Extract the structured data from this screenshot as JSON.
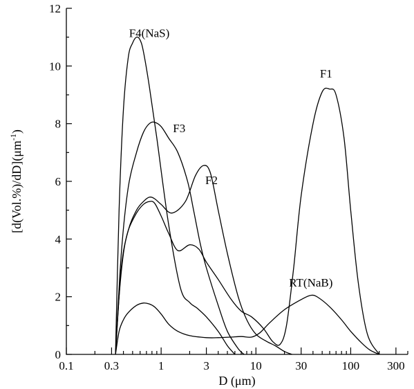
{
  "chart_data": {
    "type": "line",
    "title": "",
    "xlabel": "D (μm)",
    "ylabel": "[d(Vol.%)/dD](μm",
    "ylabel_sup": "-1",
    "ylabel_close": ")",
    "xscale": "log",
    "xlim": [
      0.1,
      400
    ],
    "ylim": [
      0,
      12
    ],
    "xticks": [
      0.1,
      0.3,
      1,
      3,
      10,
      30,
      100,
      300
    ],
    "xtick_labels": [
      "0.1",
      "0.3",
      "1",
      "3",
      "10",
      "30",
      "100",
      "300"
    ],
    "yticks": [
      0,
      2,
      4,
      6,
      8,
      10,
      12
    ],
    "ytick_labels": [
      "0",
      "2",
      "4",
      "6",
      "8",
      "10",
      "12"
    ],
    "grid": false,
    "series": [
      {
        "name": "F4(NaS)",
        "label_at": [
          0.75,
          11.0
        ],
        "x": [
          0.33,
          0.36,
          0.4,
          0.45,
          0.5,
          0.55,
          0.6,
          0.65,
          0.75,
          0.9,
          1.2,
          1.6,
          2.0,
          2.4,
          3.0,
          4.0,
          5.0,
          6.0
        ],
        "y": [
          0.0,
          5.0,
          8.5,
          10.3,
          10.8,
          11.0,
          10.9,
          10.5,
          9.3,
          7.5,
          4.5,
          2.3,
          1.8,
          1.6,
          1.3,
          0.8,
          0.3,
          0.0
        ]
      },
      {
        "name": "F3",
        "label_at": [
          1.55,
          7.7
        ],
        "x": [
          0.33,
          0.38,
          0.45,
          0.55,
          0.65,
          0.75,
          0.85,
          1.0,
          1.2,
          1.5,
          1.9,
          2.2,
          2.6,
          3.0,
          4.0,
          5.0,
          6.5,
          7.5
        ],
        "y": [
          0.0,
          3.5,
          5.8,
          7.0,
          7.7,
          8.0,
          8.05,
          7.9,
          7.5,
          7.0,
          6.0,
          5.0,
          3.8,
          3.0,
          1.7,
          0.8,
          0.2,
          0.0
        ]
      },
      {
        "name": "F2",
        "label_at": [
          3.4,
          5.9
        ],
        "x": [
          0.33,
          0.38,
          0.45,
          0.55,
          0.65,
          0.75,
          0.85,
          1.0,
          1.3,
          1.8,
          2.3,
          2.8,
          3.3,
          4.0,
          5.0,
          6.5,
          8.0,
          10.0,
          13.0,
          16.0,
          20.0,
          24.0
        ],
        "y": [
          0.0,
          3.0,
          4.3,
          5.0,
          5.3,
          5.45,
          5.4,
          5.2,
          4.9,
          5.3,
          6.2,
          6.55,
          6.3,
          5.0,
          3.5,
          2.0,
          1.2,
          0.7,
          0.45,
          0.3,
          0.1,
          0.0
        ]
      },
      {
        "name": "F1",
        "label_at": [
          55,
          9.6
        ],
        "x": [
          0.33,
          0.36,
          0.4,
          0.45,
          0.55,
          0.65,
          0.75,
          0.85,
          1.0,
          1.2,
          1.5,
          2.0,
          2.5,
          3.0,
          4.0,
          5.5,
          7.0,
          9.0,
          12.0,
          15.0,
          18.0,
          21.0,
          25.0,
          30.0,
          40.0,
          50.0,
          60.0,
          70.0,
          85.0,
          100.0,
          120.0,
          150.0,
          200.0
        ],
        "y": [
          0.0,
          2.0,
          3.5,
          4.3,
          4.9,
          5.2,
          5.3,
          5.25,
          4.8,
          4.2,
          3.6,
          3.8,
          3.65,
          3.2,
          2.6,
          1.9,
          1.5,
          1.3,
          0.9,
          0.45,
          0.35,
          1.0,
          3.0,
          5.5,
          8.0,
          9.1,
          9.2,
          9.0,
          7.5,
          5.0,
          2.5,
          0.7,
          0.0
        ]
      },
      {
        "name": "RT(NaB)",
        "label_at": [
          38,
          2.35
        ],
        "x": [
          0.33,
          0.36,
          0.4,
          0.45,
          0.55,
          0.65,
          0.75,
          0.85,
          1.0,
          1.2,
          1.5,
          2.0,
          3.0,
          4.0,
          5.5,
          7.0,
          9.0,
          11.0,
          14.0,
          20.0,
          30.0,
          38.0,
          45.0,
          60.0,
          80.0,
          100.0,
          130.0,
          160.0,
          200.0
        ],
        "y": [
          0.0,
          0.8,
          1.2,
          1.45,
          1.7,
          1.78,
          1.75,
          1.65,
          1.4,
          1.05,
          0.8,
          0.65,
          0.58,
          0.58,
          0.6,
          0.62,
          0.6,
          0.75,
          1.1,
          1.55,
          1.9,
          2.05,
          1.98,
          1.65,
          1.2,
          0.8,
          0.4,
          0.15,
          0.0
        ]
      }
    ]
  }
}
